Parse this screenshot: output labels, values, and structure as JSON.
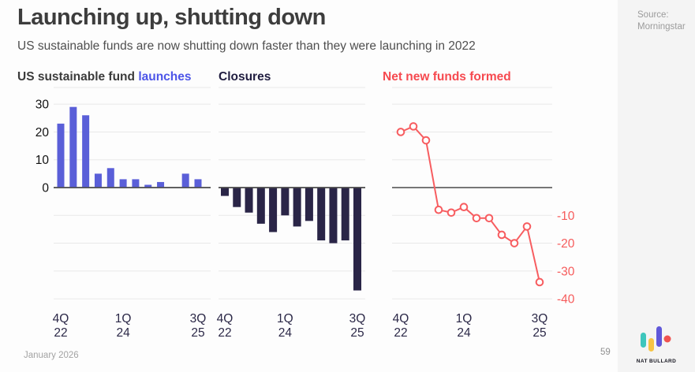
{
  "header": {
    "title": "Launching up, shutting down",
    "subtitle": "US sustainable funds are now shutting down faster than they were launching in 2022"
  },
  "source": {
    "line1": "Source:",
    "line2": "Morningstar"
  },
  "panels": {
    "launches": {
      "prefix": "US sustainable fund ",
      "accent": "launches"
    },
    "closures": {
      "title": "Closures"
    },
    "net": {
      "title": "Net new funds formed"
    }
  },
  "footer": {
    "date": "January 2026",
    "page": "59",
    "brand": "NAT BULLARD"
  },
  "colors": {
    "launches_bar": "#5a5fd8",
    "closures_bar": "#2a2547",
    "net_line": "#f75d60",
    "net_axis_label": "#f65c5c",
    "axis_text": "#111111",
    "tick_text": "#2b2847",
    "grid": "#e9e9e9",
    "zero_line": "#4a4a4a",
    "marker_fill": "#ffffff",
    "logo_teal": "#3ec6bc",
    "logo_yellow": "#f6c445",
    "logo_purple": "#6058d9",
    "logo_red": "#ef5350"
  },
  "chart_data": [
    {
      "type": "bar",
      "name": "launches",
      "title": "US sustainable fund launches",
      "categories": [
        "4Q22",
        "1Q23",
        "2Q23",
        "3Q23",
        "4Q23",
        "1Q24",
        "2Q24",
        "3Q24",
        "4Q24",
        "1Q25",
        "2Q25",
        "3Q25"
      ],
      "values": [
        23,
        29,
        26,
        5,
        7,
        3,
        3,
        1,
        2,
        0,
        5,
        3
      ],
      "ylim": [
        -40,
        30
      ],
      "grid": true,
      "y_ticks_left": [
        30,
        20,
        10,
        0
      ],
      "x_ticks_shown": [
        {
          "index": 0,
          "lines": [
            "4Q",
            "22"
          ]
        },
        {
          "index": 5,
          "lines": [
            "1Q",
            "24"
          ]
        },
        {
          "index": 11,
          "lines": [
            "3Q",
            "25"
          ]
        }
      ]
    },
    {
      "type": "bar",
      "name": "closures",
      "title": "Closures",
      "categories": [
        "4Q22",
        "1Q23",
        "2Q23",
        "3Q23",
        "4Q23",
        "1Q24",
        "2Q24",
        "3Q24",
        "4Q24",
        "1Q25",
        "2Q25",
        "3Q25"
      ],
      "values": [
        -3,
        -7,
        -9,
        -13,
        -16,
        -10,
        -14,
        -12,
        -19,
        -20,
        -19,
        -37
      ],
      "ylim": [
        -40,
        30
      ],
      "grid": true,
      "x_ticks_shown": [
        {
          "index": 0,
          "lines": [
            "4Q",
            "22"
          ]
        },
        {
          "index": 5,
          "lines": [
            "1Q",
            "24"
          ]
        },
        {
          "index": 11,
          "lines": [
            "3Q",
            "25"
          ]
        }
      ]
    },
    {
      "type": "line",
      "name": "net-new-funds",
      "title": "Net new funds formed",
      "marker": "open-circle",
      "categories": [
        "4Q22",
        "1Q23",
        "2Q23",
        "3Q23",
        "4Q23",
        "1Q24",
        "2Q24",
        "3Q24",
        "4Q24",
        "1Q25",
        "2Q25",
        "3Q25"
      ],
      "values": [
        20,
        22,
        17,
        -8,
        -9,
        -7,
        -11,
        -11,
        -17,
        -20,
        -14,
        -34
      ],
      "ylim": [
        -40,
        30
      ],
      "grid": true,
      "y_ticks_right": [
        -10,
        -20,
        -30,
        -40
      ],
      "x_ticks_shown": [
        {
          "index": 0,
          "lines": [
            "4Q",
            "22"
          ]
        },
        {
          "index": 5,
          "lines": [
            "1Q",
            "24"
          ]
        },
        {
          "index": 11,
          "lines": [
            "3Q",
            "25"
          ]
        }
      ]
    }
  ]
}
